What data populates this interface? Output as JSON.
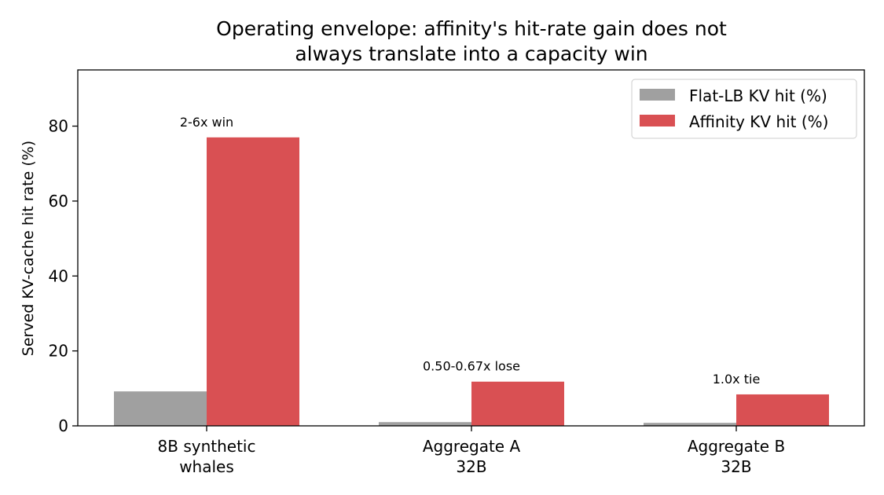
{
  "chart_data": {
    "type": "bar",
    "title_lines": [
      "Operating envelope: affinity's hit-rate gain does not",
      "always translate into a capacity win"
    ],
    "ylabel": "Served KV-cache hit rate (%)",
    "xlabel": "",
    "ylim": [
      0,
      95
    ],
    "yticks": [
      0,
      20,
      40,
      60,
      80
    ],
    "categories": [
      {
        "lines": [
          "8B synthetic",
          "whales"
        ]
      },
      {
        "lines": [
          "Aggregate A",
          "32B"
        ]
      },
      {
        "lines": [
          "Aggregate B",
          "32B"
        ]
      }
    ],
    "series": [
      {
        "name": "Flat-LB KV hit (%)",
        "color": "#a0a0a0",
        "values": [
          9.2,
          1.0,
          0.8
        ]
      },
      {
        "name": "Affinity KV hit (%)",
        "color": "#d95053",
        "values": [
          77.0,
          11.8,
          8.4
        ]
      }
    ],
    "annotations": [
      "2-6x win",
      "0.50-0.67x lose",
      "1.0x tie"
    ],
    "legend_position": "top-right",
    "grid": false
  }
}
